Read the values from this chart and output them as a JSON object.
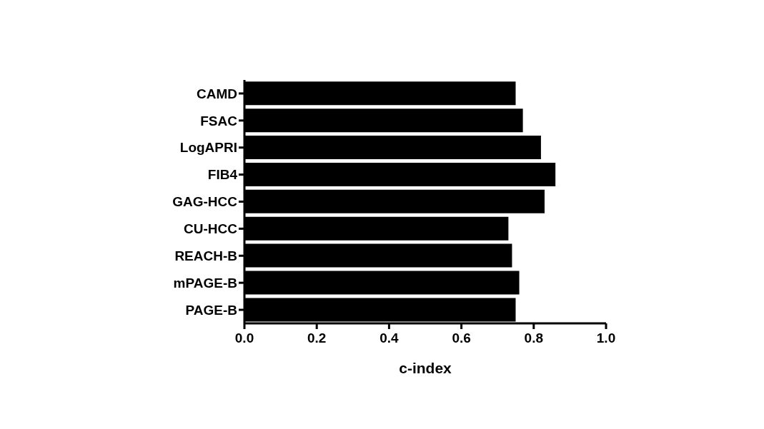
{
  "chart_data": {
    "type": "bar",
    "orientation": "horizontal",
    "xlabel": "c-index",
    "categories": [
      "CAMD",
      "FSAC",
      "LogAPRI",
      "FIB4",
      "GAG-HCC",
      "CU-HCC",
      "REACH-B",
      "mPAGE-B",
      "PAGE-B"
    ],
    "values": [
      0.75,
      0.77,
      0.82,
      0.86,
      0.83,
      0.73,
      0.74,
      0.76,
      0.75
    ],
    "color": "#000000",
    "xlim": [
      0,
      1
    ],
    "xticks": [
      {
        "value": 0,
        "label": "0.0"
      },
      {
        "value": 0.2,
        "label": "0.2"
      },
      {
        "value": 0.4,
        "label": "0.4"
      },
      {
        "value": 0.6,
        "label": "0.6"
      },
      {
        "value": 0.8,
        "label": "0.8"
      },
      {
        "value": 1,
        "label": "1.0"
      }
    ],
    "grid": false
  }
}
